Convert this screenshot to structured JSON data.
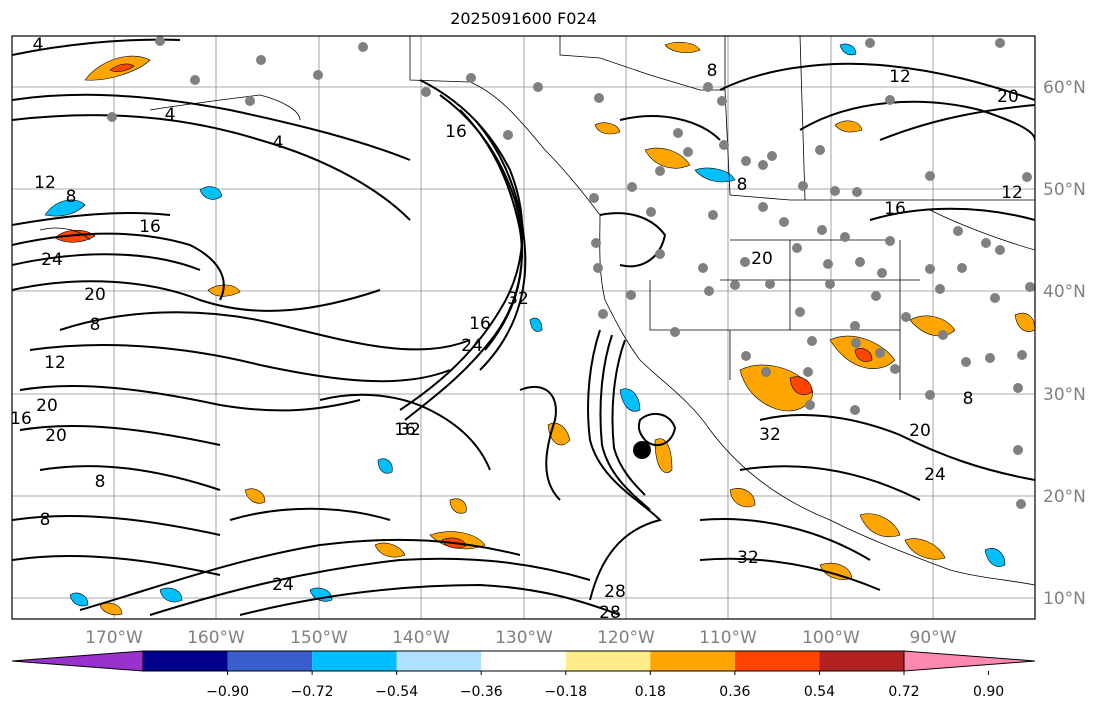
{
  "title": "2025091600 F024",
  "map": {
    "lon_labels": [
      "170°W",
      "160°W",
      "150°W",
      "140°W",
      "130°W",
      "120°W",
      "110°W",
      "100°W",
      "90°W"
    ],
    "lat_labels": [
      "60°N",
      "50°N",
      "40°N",
      "30°N",
      "20°N",
      "10°N"
    ],
    "contour_labels": [
      "4",
      "4",
      "4",
      "8",
      "12",
      "16",
      "24",
      "20",
      "8",
      "12",
      "20",
      "16",
      "20",
      "8",
      "8",
      "16",
      "32",
      "24",
      "32",
      "16",
      "16",
      "8",
      "12",
      "20",
      "16",
      "20",
      "12",
      "8",
      "32",
      "24",
      "28",
      "8",
      "32",
      "28",
      "20",
      "24"
    ],
    "colors": {
      "ocean": "#ffffff",
      "contour": "#000000",
      "grid": "#8c8c8c",
      "station": "#808080",
      "marker": "#000000"
    }
  },
  "colorbar": {
    "ticks": [
      "−0.90",
      "−0.72",
      "−0.54",
      "−0.36",
      "−0.18",
      "0.18",
      "0.36",
      "0.54",
      "0.72",
      "0.90"
    ],
    "colors": [
      "#9932cc",
      "#00008b",
      "#3a5fcd",
      "#00bfff",
      "#b0e2ff",
      "#ffffff",
      "#ffec8b",
      "#ffa500",
      "#ff4500",
      "#b22222",
      "#ff88b0"
    ]
  }
}
